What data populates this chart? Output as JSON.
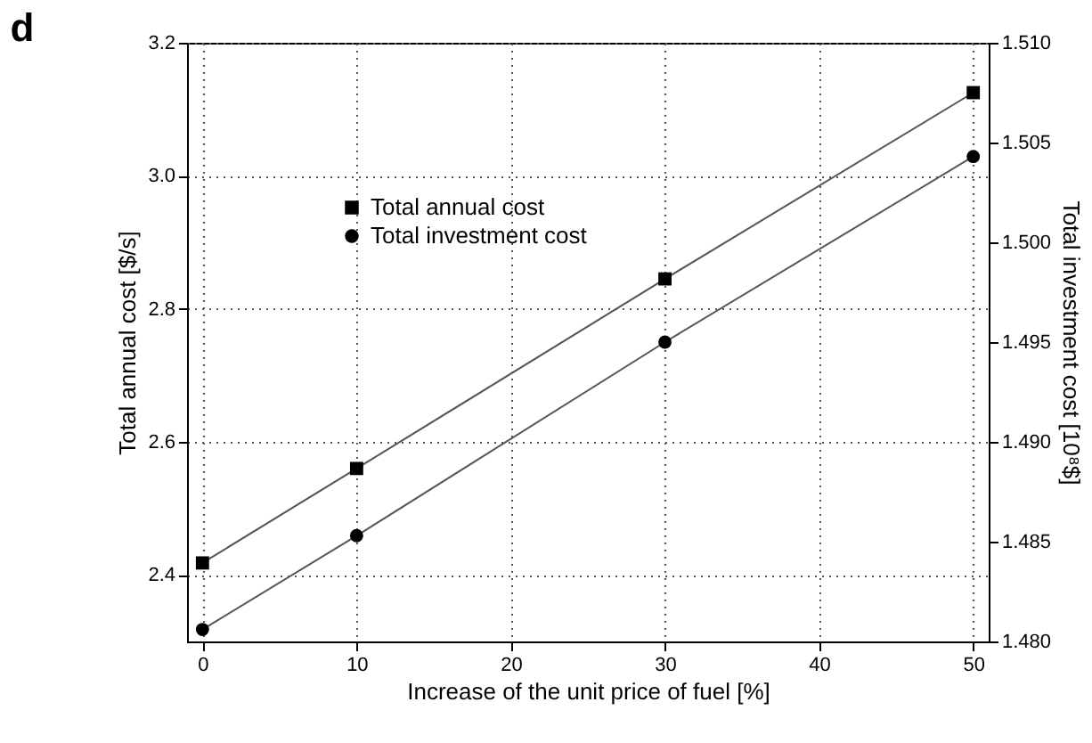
{
  "chart_data": {
    "type": "line",
    "title": "d",
    "xlabel": "Increase of the unit price of fuel [%]",
    "ylabel": "Total annual cost [$/s]",
    "y2label": "Total investment cost [10⁸$]",
    "x": [
      0,
      10,
      30,
      50
    ],
    "series": [
      {
        "name": "Total annual cost",
        "color": "#000000",
        "marker": "square",
        "values": [
          2.418,
          2.56,
          2.845,
          3.125
        ]
      },
      {
        "name": "Total investment cost",
        "color": "#000000",
        "marker": "circle",
        "axis": "y2",
        "values": [
          1.4806,
          1.4853,
          1.495,
          1.5043
        ]
      }
    ],
    "xlim": [
      -1,
      51
    ],
    "xticks": [
      0,
      10,
      20,
      30,
      40,
      50
    ],
    "ylim": [
      2.3,
      3.2
    ],
    "yticks": [
      2.4,
      2.6,
      2.8,
      {
        "value": 3,
        "label": "3.0"
      },
      3.2
    ],
    "y2lim": [
      1.48,
      1.51
    ],
    "y2ticks": [
      {
        "value": 1.48,
        "label": "1.480"
      },
      {
        "value": 1.485,
        "label": "1.485"
      },
      {
        "value": 1.49,
        "label": "1.490"
      },
      {
        "value": 1.495,
        "label": "1.495"
      },
      {
        "value": 1.5,
        "label": "1.500"
      },
      {
        "value": 1.505,
        "label": "1.505"
      },
      {
        "value": 1.51,
        "label": "1.510"
      }
    ],
    "grid": true,
    "legend": "top left",
    "line_style": "solid"
  }
}
